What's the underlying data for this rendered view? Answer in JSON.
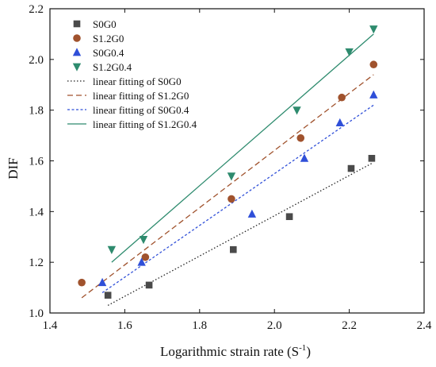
{
  "chart_data": {
    "type": "scatter",
    "title": "",
    "xlabel": "Logarithmic strain rate (S",
    "xlabel_sup": "-1",
    "xlabel_end": ")",
    "ylabel": "DIF",
    "xlim": [
      1.4,
      2.4
    ],
    "ylim": [
      1.0,
      2.2
    ],
    "xticks": [
      "1.4",
      "1.6",
      "1.8",
      "2.0",
      "2.2",
      "2.4"
    ],
    "yticks": [
      "1.0",
      "1.2",
      "1.4",
      "1.6",
      "1.8",
      "2.0",
      "2.2"
    ],
    "grid": false,
    "legend_position": "top-left",
    "series": [
      {
        "name": "S0G0",
        "marker": "square",
        "color": "#4a4a4a",
        "x": [
          1.555,
          1.665,
          1.89,
          2.04,
          2.205,
          2.26
        ],
        "y": [
          1.07,
          1.11,
          1.25,
          1.38,
          1.57,
          1.61
        ]
      },
      {
        "name": "S1.2G0",
        "marker": "circle",
        "color": "#a0522d",
        "x": [
          1.485,
          1.655,
          1.885,
          2.07,
          2.18,
          2.265
        ],
        "y": [
          1.12,
          1.22,
          1.45,
          1.69,
          1.85,
          1.98
        ]
      },
      {
        "name": "S0G0.4",
        "marker": "triangle-up",
        "color": "#2f4fd8",
        "x": [
          1.54,
          1.645,
          1.94,
          2.08,
          2.175,
          2.265
        ],
        "y": [
          1.12,
          1.2,
          1.39,
          1.61,
          1.75,
          1.86
        ]
      },
      {
        "name": "S1.2G0.4",
        "marker": "triangle-down",
        "color": "#2e8b6e",
        "x": [
          1.565,
          1.65,
          1.885,
          2.06,
          2.2,
          2.265
        ],
        "y": [
          1.25,
          1.29,
          1.54,
          1.8,
          2.03,
          2.12
        ]
      }
    ],
    "fits": [
      {
        "name": "linear fitting of S0G0",
        "style": "dotted",
        "color": "#222222",
        "x": [
          1.555,
          2.26
        ],
        "y": [
          1.03,
          1.59
        ]
      },
      {
        "name": "linear fitting of S1.2G0",
        "style": "dashed",
        "color": "#a0522d",
        "x": [
          1.485,
          2.265
        ],
        "y": [
          1.06,
          1.94
        ]
      },
      {
        "name": "linear fitting of S0G0.4",
        "style": "short-dash",
        "color": "#2f4fd8",
        "x": [
          1.54,
          2.265
        ],
        "y": [
          1.08,
          1.82
        ]
      },
      {
        "name": "linear fitting of S1.2G0.4",
        "style": "solid",
        "color": "#2e8b6e",
        "x": [
          1.565,
          2.265
        ],
        "y": [
          1.2,
          2.1
        ]
      }
    ]
  }
}
